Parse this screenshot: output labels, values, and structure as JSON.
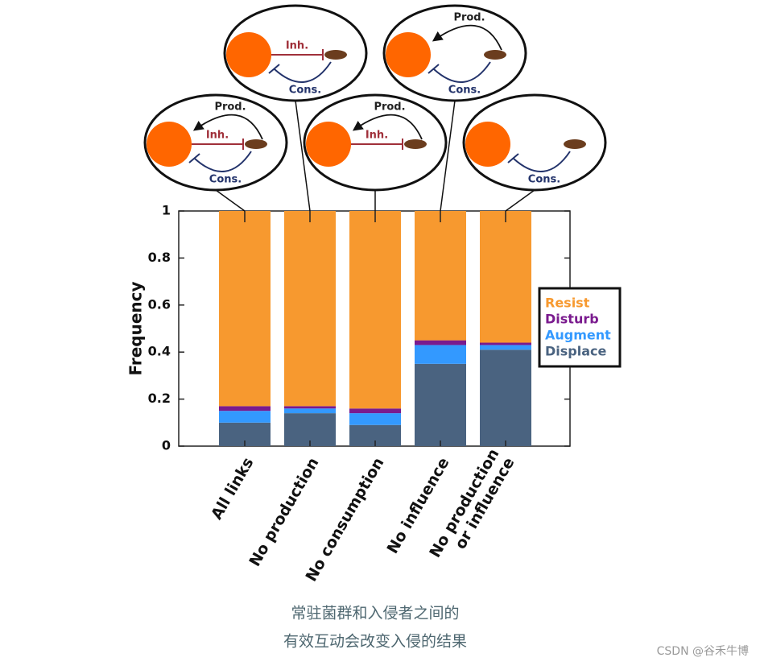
{
  "chart_data": {
    "type": "stacked_bar",
    "y_label": "Frequency",
    "categories": [
      "All links",
      "No production",
      "No consumption",
      "No influence",
      "No production\nor influence"
    ],
    "series": [
      {
        "name": "Resist",
        "color": "#f7992f",
        "values": [
          0.83,
          0.83,
          0.84,
          0.55,
          0.56
        ]
      },
      {
        "name": "Disturb",
        "color": "#7a1a8e",
        "values": [
          0.02,
          0.01,
          0.02,
          0.02,
          0.01
        ]
      },
      {
        "name": "Augment",
        "color": "#3399ff",
        "values": [
          0.05,
          0.02,
          0.05,
          0.08,
          0.02
        ]
      },
      {
        "name": "Displace",
        "color": "#4a6380",
        "values": [
          0.1,
          0.14,
          0.09,
          0.35,
          0.41
        ]
      }
    ],
    "ylim": [
      0,
      1
    ],
    "yticks": [
      0,
      0.2,
      0.4,
      0.6,
      0.8,
      1
    ],
    "legend": "right",
    "diagrams": [
      {
        "prod": "Prod.",
        "inh": "Inh.",
        "cons": "Cons."
      },
      {
        "inh": "Inh.",
        "cons": "Cons."
      },
      {
        "prod": "Prod.",
        "inh": "Inh."
      },
      {
        "prod": "Prod.",
        "cons": "Cons."
      },
      {
        "cons": "Cons."
      }
    ]
  },
  "caption": [
    "常驻菌群和入侵者之间的",
    "有效互动会改变入侵的结果"
  ],
  "watermark": "CSDN @谷禾牛博"
}
